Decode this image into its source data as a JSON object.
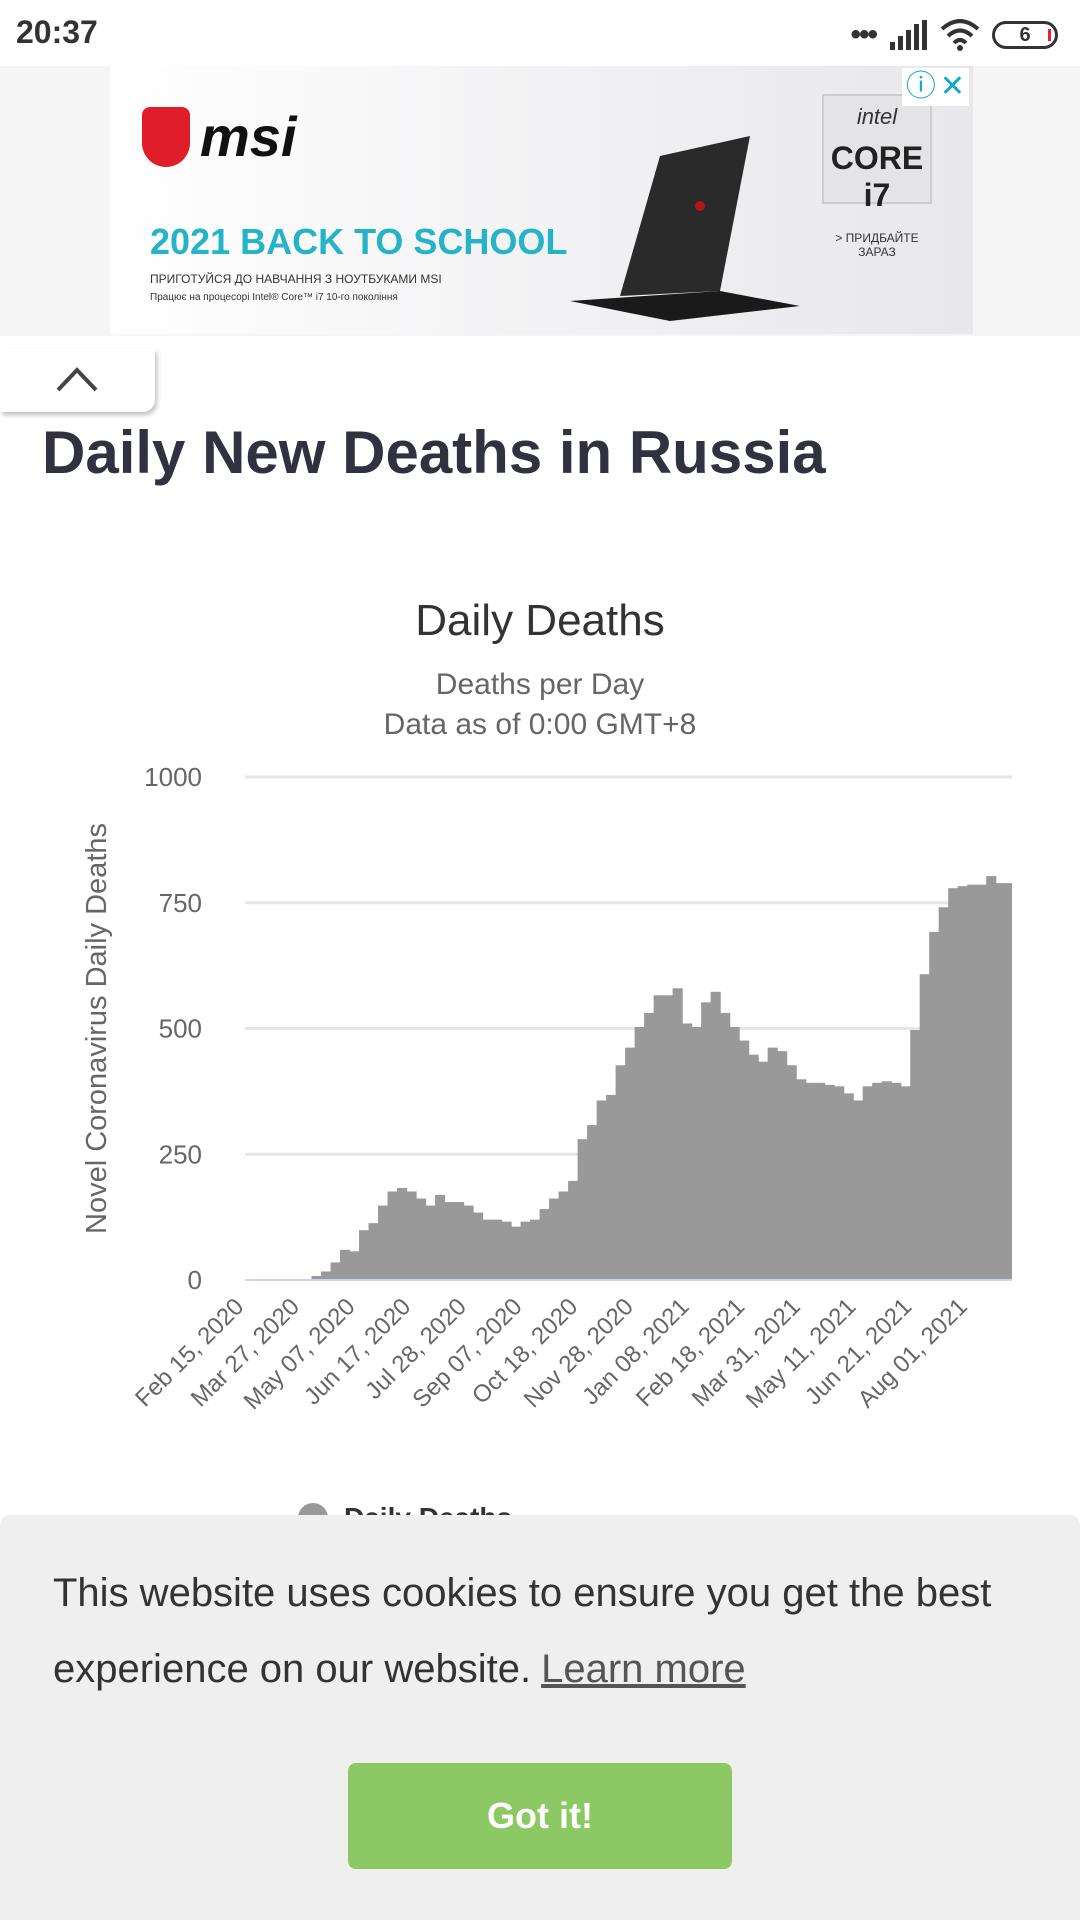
{
  "status_bar": {
    "time": "20:37",
    "battery": "6"
  },
  "ad": {
    "brand": "msi",
    "headline": "2021 BACK TO SCHOOL",
    "line1": "ПРИГОТУЙСЯ ДО НАВЧАННЯ З НОУТБУКАМИ MSI",
    "line2": "Працює на процесорі Intel® Core™ i7 10-го покоління",
    "intel_logo": "intel",
    "intel_chip": "CORE i7",
    "cta": "> ПРИДБАЙТЕ ЗАРАЗ",
    "info_icon": "ⓘ",
    "close_icon": "✕"
  },
  "page": {
    "title": "Daily New Deaths in Russia"
  },
  "chart_data": {
    "type": "bar",
    "title": "Daily Deaths",
    "subtitle": "Deaths per Day",
    "subtitle2": "Data as of 0:00 GMT+8",
    "ylabel": "Novel Coronavirus Daily Deaths",
    "xlabel": "",
    "ylim": [
      0,
      1000
    ],
    "yticks": [
      "0",
      "250",
      "500",
      "750",
      "1000"
    ],
    "ytick_values": [
      0,
      250,
      500,
      750,
      1000
    ],
    "xticks": [
      "Feb 15, 2020",
      "Mar 27, 2020",
      "May 07, 2020",
      "Jun 17, 2020",
      "Jul 28, 2020",
      "Sep 07, 2020",
      "Oct 18, 2020",
      "Nov 28, 2020",
      "Jan 08, 2021",
      "Feb 18, 2021",
      "Mar 31, 2021",
      "May 11, 2021",
      "Jun 21, 2021",
      "Aug 01, 2021"
    ],
    "xtick_interval_days": 41,
    "total_days": 565,
    "bar_interval_days": 7,
    "start": "Feb 15, 2020",
    "color": "#999999",
    "values": [
      0,
      0,
      0,
      0,
      0,
      0,
      0,
      8,
      17,
      35,
      60,
      57,
      99,
      113,
      148,
      176,
      183,
      176,
      162,
      148,
      169,
      155,
      155,
      148,
      134,
      120,
      120,
      116,
      106,
      116,
      120,
      141,
      162,
      176,
      197,
      280,
      308,
      357,
      368,
      427,
      462,
      503,
      531,
      566,
      566,
      580,
      510,
      503,
      552,
      573,
      531,
      503,
      476,
      448,
      434,
      462,
      455,
      427,
      399,
      392,
      392,
      388,
      385,
      371,
      357,
      385,
      392,
      395,
      392,
      385,
      497,
      608,
      692,
      741,
      779,
      783,
      786,
      786,
      803,
      789,
      789
    ],
    "legend": [
      {
        "label": "Daily Deaths",
        "color": "#999999"
      }
    ],
    "legend_position": "bottom",
    "grid": true
  },
  "cookie": {
    "text": "This website uses cookies to ensure you get the best experience on our website.",
    "link": "Learn more",
    "button": "Got it!"
  }
}
